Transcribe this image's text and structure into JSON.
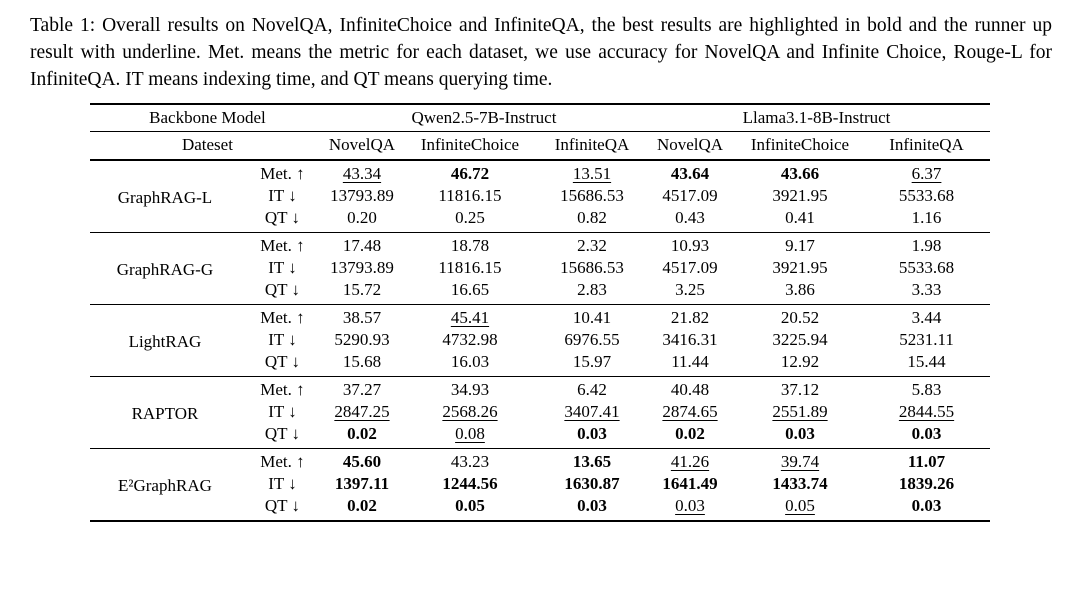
{
  "caption": "Table 1: Overall results on NovelQA, InfiniteChoice and InfiniteQA, the best results are highlighted in bold and the runner up result with underline. Met. means the metric for each dataset, we use accuracy for NovelQA and Infinite Choice, Rouge-L for InfiniteQA. IT means indexing time, and QT means querying time.",
  "table": {
    "header": {
      "backbone_label": "Backbone Model",
      "backbones": [
        "Qwen2.5-7B-Instruct",
        "Llama3.1-8B-Instruct"
      ],
      "dataset_label": "Dateset",
      "datasets": [
        "NovelQA",
        "InfiniteChoice",
        "InfiniteQA",
        "NovelQA",
        "InfiniteChoice",
        "InfiniteQA"
      ]
    },
    "emphasis_legend": {
      "b": "bold = best result",
      "u": "underline = runner-up result"
    },
    "groups": [
      {
        "method": "GraphRAG-L",
        "rows": [
          {
            "metric": "Met. ↑",
            "cells": [
              {
                "v": "43.34",
                "s": "u"
              },
              {
                "v": "46.72",
                "s": "b"
              },
              {
                "v": "13.51",
                "s": "u"
              },
              {
                "v": "43.64",
                "s": "b"
              },
              {
                "v": "43.66",
                "s": "b"
              },
              {
                "v": "6.37",
                "s": "u"
              }
            ]
          },
          {
            "metric": "IT ↓",
            "cells": [
              {
                "v": "13793.89",
                "s": ""
              },
              {
                "v": "11816.15",
                "s": ""
              },
              {
                "v": "15686.53",
                "s": ""
              },
              {
                "v": "4517.09",
                "s": ""
              },
              {
                "v": "3921.95",
                "s": ""
              },
              {
                "v": "5533.68",
                "s": ""
              }
            ]
          },
          {
            "metric": "QT ↓",
            "cells": [
              {
                "v": "0.20",
                "s": ""
              },
              {
                "v": "0.25",
                "s": ""
              },
              {
                "v": "0.82",
                "s": ""
              },
              {
                "v": "0.43",
                "s": ""
              },
              {
                "v": "0.41",
                "s": ""
              },
              {
                "v": "1.16",
                "s": ""
              }
            ]
          }
        ]
      },
      {
        "method": "GraphRAG-G",
        "rows": [
          {
            "metric": "Met. ↑",
            "cells": [
              {
                "v": "17.48",
                "s": ""
              },
              {
                "v": "18.78",
                "s": ""
              },
              {
                "v": "2.32",
                "s": ""
              },
              {
                "v": "10.93",
                "s": ""
              },
              {
                "v": "9.17",
                "s": ""
              },
              {
                "v": "1.98",
                "s": ""
              }
            ]
          },
          {
            "metric": "IT ↓",
            "cells": [
              {
                "v": "13793.89",
                "s": ""
              },
              {
                "v": "11816.15",
                "s": ""
              },
              {
                "v": "15686.53",
                "s": ""
              },
              {
                "v": "4517.09",
                "s": ""
              },
              {
                "v": "3921.95",
                "s": ""
              },
              {
                "v": "5533.68",
                "s": ""
              }
            ]
          },
          {
            "metric": "QT ↓",
            "cells": [
              {
                "v": "15.72",
                "s": ""
              },
              {
                "v": "16.65",
                "s": ""
              },
              {
                "v": "2.83",
                "s": ""
              },
              {
                "v": "3.25",
                "s": ""
              },
              {
                "v": "3.86",
                "s": ""
              },
              {
                "v": "3.33",
                "s": ""
              }
            ]
          }
        ]
      },
      {
        "method": "LightRAG",
        "rows": [
          {
            "metric": "Met. ↑",
            "cells": [
              {
                "v": "38.57",
                "s": ""
              },
              {
                "v": "45.41",
                "s": "u"
              },
              {
                "v": "10.41",
                "s": ""
              },
              {
                "v": "21.82",
                "s": ""
              },
              {
                "v": "20.52",
                "s": ""
              },
              {
                "v": "3.44",
                "s": ""
              }
            ]
          },
          {
            "metric": "IT ↓",
            "cells": [
              {
                "v": "5290.93",
                "s": ""
              },
              {
                "v": "4732.98",
                "s": ""
              },
              {
                "v": "6976.55",
                "s": ""
              },
              {
                "v": "3416.31",
                "s": ""
              },
              {
                "v": "3225.94",
                "s": ""
              },
              {
                "v": "5231.11",
                "s": ""
              }
            ]
          },
          {
            "metric": "QT ↓",
            "cells": [
              {
                "v": "15.68",
                "s": ""
              },
              {
                "v": "16.03",
                "s": ""
              },
              {
                "v": "15.97",
                "s": ""
              },
              {
                "v": "11.44",
                "s": ""
              },
              {
                "v": "12.92",
                "s": ""
              },
              {
                "v": "15.44",
                "s": ""
              }
            ]
          }
        ]
      },
      {
        "method": "RAPTOR",
        "rows": [
          {
            "metric": "Met. ↑",
            "cells": [
              {
                "v": "37.27",
                "s": ""
              },
              {
                "v": "34.93",
                "s": ""
              },
              {
                "v": "6.42",
                "s": ""
              },
              {
                "v": "40.48",
                "s": ""
              },
              {
                "v": "37.12",
                "s": ""
              },
              {
                "v": "5.83",
                "s": ""
              }
            ]
          },
          {
            "metric": "IT ↓",
            "cells": [
              {
                "v": "2847.25",
                "s": "u"
              },
              {
                "v": "2568.26",
                "s": "u"
              },
              {
                "v": "3407.41",
                "s": "u"
              },
              {
                "v": "2874.65",
                "s": "u"
              },
              {
                "v": "2551.89",
                "s": "u"
              },
              {
                "v": "2844.55",
                "s": "u"
              }
            ]
          },
          {
            "metric": "QT ↓",
            "cells": [
              {
                "v": "0.02",
                "s": "b"
              },
              {
                "v": "0.08",
                "s": "u"
              },
              {
                "v": "0.03",
                "s": "b"
              },
              {
                "v": "0.02",
                "s": "b"
              },
              {
                "v": "0.03",
                "s": "b"
              },
              {
                "v": "0.03",
                "s": "b"
              }
            ]
          }
        ]
      },
      {
        "method": "E²GraphRAG",
        "rows": [
          {
            "metric": "Met. ↑",
            "cells": [
              {
                "v": "45.60",
                "s": "b"
              },
              {
                "v": "43.23",
                "s": ""
              },
              {
                "v": "13.65",
                "s": "b"
              },
              {
                "v": "41.26",
                "s": "u"
              },
              {
                "v": "39.74",
                "s": "u"
              },
              {
                "v": "11.07",
                "s": "b"
              }
            ]
          },
          {
            "metric": "IT ↓",
            "cells": [
              {
                "v": "1397.11",
                "s": "b"
              },
              {
                "v": "1244.56",
                "s": "b"
              },
              {
                "v": "1630.87",
                "s": "b"
              },
              {
                "v": "1641.49",
                "s": "b"
              },
              {
                "v": "1433.74",
                "s": "b"
              },
              {
                "v": "1839.26",
                "s": "b"
              }
            ]
          },
          {
            "metric": "QT ↓",
            "cells": [
              {
                "v": "0.02",
                "s": "b"
              },
              {
                "v": "0.05",
                "s": "b"
              },
              {
                "v": "0.03",
                "s": "b"
              },
              {
                "v": "0.03",
                "s": "u"
              },
              {
                "v": "0.05",
                "s": "u"
              },
              {
                "v": "0.03",
                "s": "b"
              }
            ]
          }
        ]
      }
    ]
  }
}
